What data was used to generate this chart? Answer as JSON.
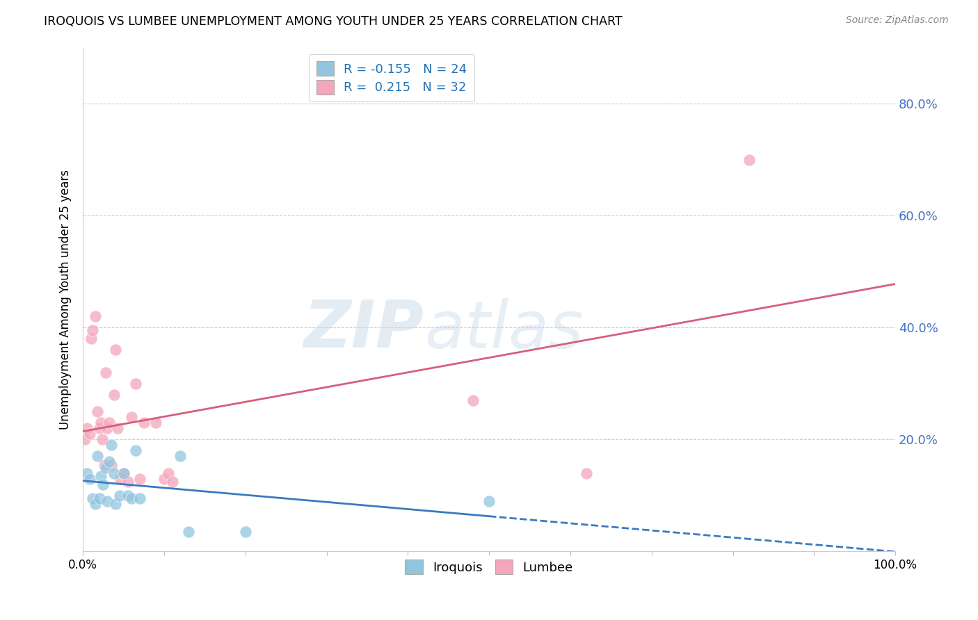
{
  "title": "IROQUOIS VS LUMBEE UNEMPLOYMENT AMONG YOUTH UNDER 25 YEARS CORRELATION CHART",
  "source": "Source: ZipAtlas.com",
  "ylabel": "Unemployment Among Youth under 25 years",
  "xlim": [
    0.0,
    1.0
  ],
  "ylim": [
    0.0,
    0.9
  ],
  "yticks": [
    0.0,
    0.2,
    0.4,
    0.6,
    0.8
  ],
  "ytick_labels": [
    "",
    "20.0%",
    "40.0%",
    "60.0%",
    "80.0%"
  ],
  "xticks": [
    0.0,
    0.1,
    0.2,
    0.3,
    0.4,
    0.5,
    0.6,
    0.7,
    0.8,
    0.9,
    1.0
  ],
  "xtick_labels": [
    "0.0%",
    "",
    "",
    "",
    "",
    "",
    "",
    "",
    "",
    "",
    "100.0%"
  ],
  "iroquois_color": "#92c5de",
  "lumbee_color": "#f4a6bb",
  "iroquois_line_color": "#3a7abf",
  "lumbee_line_color": "#d4607a",
  "iroquois_R": -0.155,
  "iroquois_N": 24,
  "lumbee_R": 0.215,
  "lumbee_N": 32,
  "legend_labels": [
    "Iroquois",
    "Lumbee"
  ],
  "watermark_zip": "ZIP",
  "watermark_atlas": "atlas",
  "iroquois_x": [
    0.005,
    0.008,
    0.012,
    0.015,
    0.018,
    0.02,
    0.022,
    0.025,
    0.028,
    0.03,
    0.032,
    0.035,
    0.038,
    0.04,
    0.045,
    0.05,
    0.055,
    0.06,
    0.065,
    0.07,
    0.12,
    0.13,
    0.2,
    0.5
  ],
  "iroquois_y": [
    0.14,
    0.13,
    0.095,
    0.085,
    0.17,
    0.095,
    0.135,
    0.12,
    0.15,
    0.09,
    0.16,
    0.19,
    0.14,
    0.085,
    0.1,
    0.14,
    0.1,
    0.095,
    0.18,
    0.095,
    0.17,
    0.035,
    0.035,
    0.09
  ],
  "lumbee_x": [
    0.002,
    0.005,
    0.008,
    0.01,
    0.012,
    0.015,
    0.018,
    0.02,
    0.022,
    0.024,
    0.026,
    0.028,
    0.03,
    0.032,
    0.035,
    0.038,
    0.04,
    0.043,
    0.046,
    0.05,
    0.055,
    0.06,
    0.065,
    0.07,
    0.075,
    0.09,
    0.1,
    0.105,
    0.11,
    0.48,
    0.62,
    0.82
  ],
  "lumbee_y": [
    0.2,
    0.22,
    0.21,
    0.38,
    0.395,
    0.42,
    0.25,
    0.22,
    0.23,
    0.2,
    0.155,
    0.32,
    0.22,
    0.23,
    0.155,
    0.28,
    0.36,
    0.22,
    0.13,
    0.14,
    0.125,
    0.24,
    0.3,
    0.13,
    0.23,
    0.23,
    0.13,
    0.14,
    0.125,
    0.27,
    0.14,
    0.7
  ]
}
